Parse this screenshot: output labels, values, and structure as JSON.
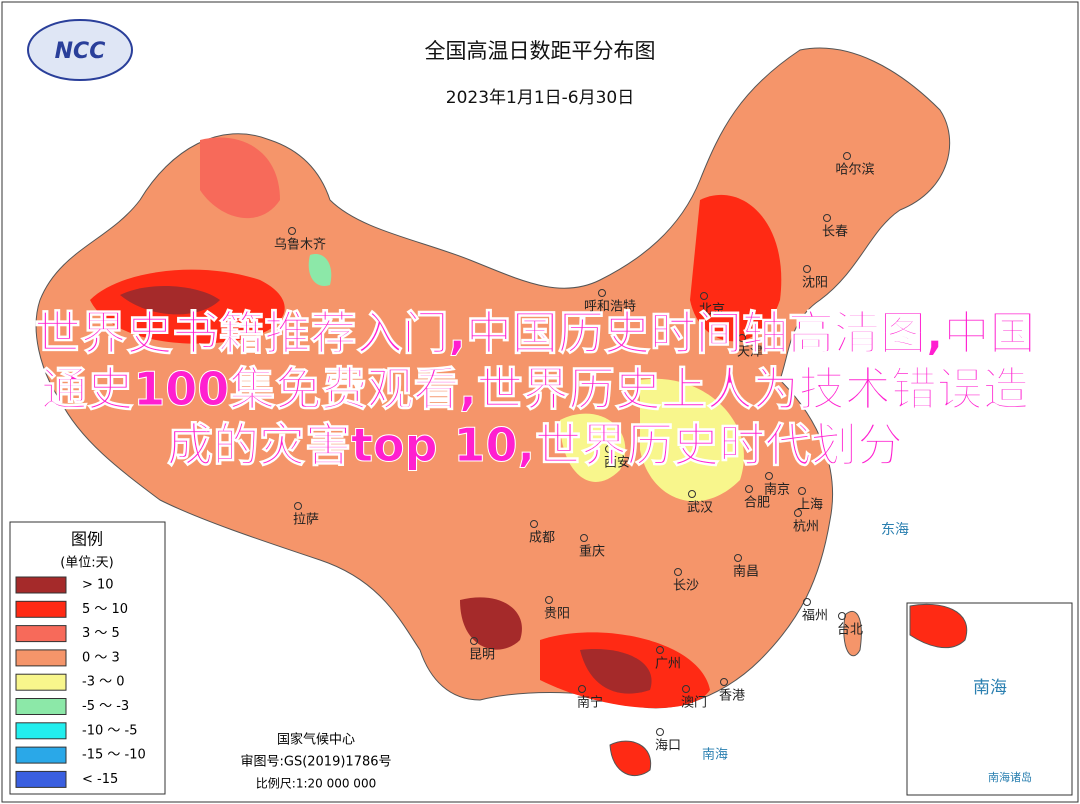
{
  "header": {
    "logo": "NCC",
    "title": "全国高温日数距平分布图",
    "subtitle": "2023年1月1日-6月30日"
  },
  "legend": {
    "title": "图例",
    "unit": "(单位:天)",
    "items": [
      {
        "label": "> 10",
        "color": "#a52a2a"
      },
      {
        "label": "5 ～ 10",
        "color": "#ff2a14"
      },
      {
        "label": "3 ～ 5",
        "color": "#f76a5a"
      },
      {
        "label": "0 ～ 3",
        "color": "#f5956a"
      },
      {
        "label": "-3 ～ 0",
        "color": "#f8f68c"
      },
      {
        "label": "-5 ～ -3",
        "color": "#8ce8a8"
      },
      {
        "label": "-10 ～ -5",
        "color": "#22eeee"
      },
      {
        "label": "-15 ～ -10",
        "color": "#2aa8e8"
      },
      {
        "label": "< -15",
        "color": "#3a5fe0"
      }
    ]
  },
  "cities": [
    "哈尔滨",
    "长春",
    "沈阳",
    "乌鲁木齐",
    "呼和浩特",
    "北京",
    "天津",
    "西安",
    "南京",
    "上海",
    "合肥",
    "杭州",
    "武汉",
    "成都",
    "重庆",
    "长沙",
    "南昌",
    "贵阳",
    "福州",
    "台北",
    "昆明",
    "广州",
    "南宁",
    "澳门",
    "香港",
    "海口",
    "拉萨"
  ],
  "seas": [
    "东海",
    "南海",
    "南海",
    "南海诸岛"
  ],
  "footer": {
    "agency": "国家气候中心",
    "approval": "审图号:GS(2019)1786号",
    "scale": "比例尺:1:20 000 000"
  },
  "overlay": "世界史书籍推荐入门,中国历史时间轴高清图,中国通史100集免费观看,世界历史上人为技术错误造成的灾害top 10,世界历史时代划分"
}
